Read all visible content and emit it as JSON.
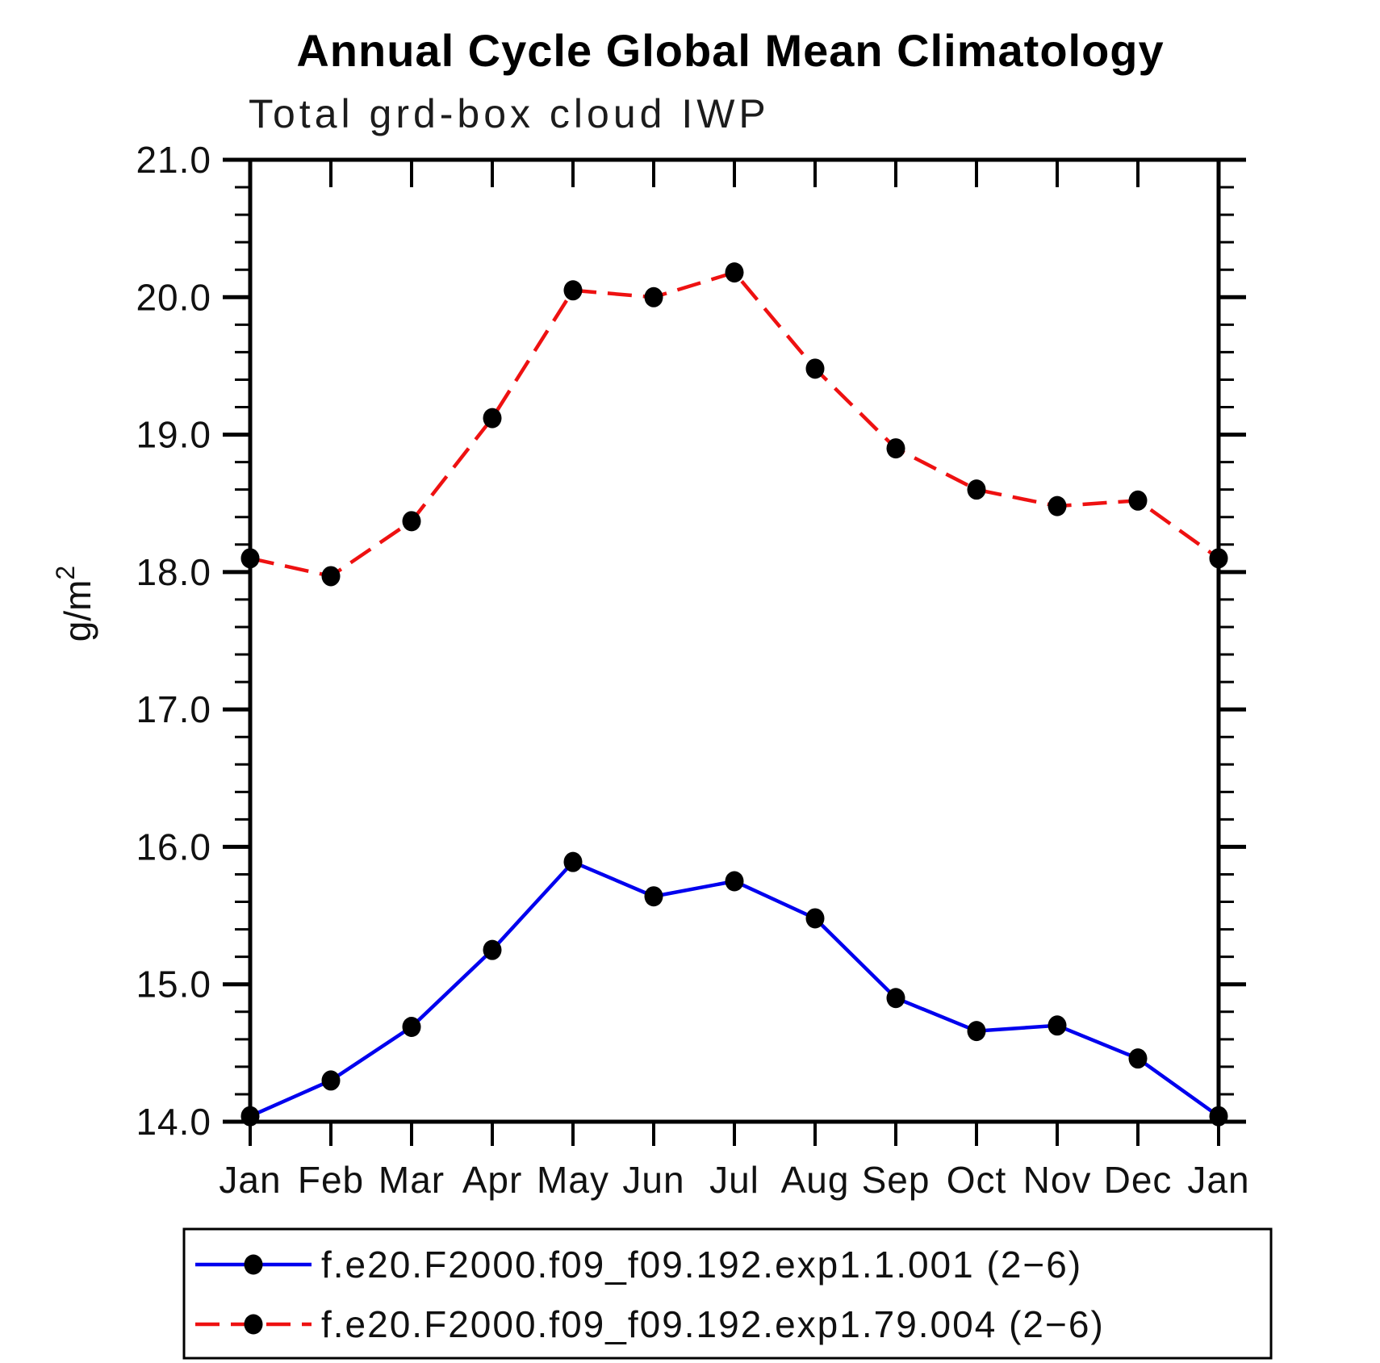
{
  "header": {
    "title": "Annual Cycle Global Mean Climatology",
    "subtitle": "Total grd-box cloud IWP"
  },
  "labels": {
    "ylabel_base": "g/m",
    "ylabel_sup": "2"
  },
  "chart_data": {
    "type": "line",
    "title": "Annual Cycle Global Mean Climatology",
    "subtitle": "Total grd-box cloud IWP",
    "ylabel": "g/m²",
    "xlabel": "",
    "ylim": [
      14.0,
      21.0
    ],
    "ytick_step": 1.0,
    "yminor_step": 0.2,
    "grid": false,
    "legend_position": "bottom",
    "categories": [
      "Jan",
      "Feb",
      "Mar",
      "Apr",
      "May",
      "Jun",
      "Jul",
      "Aug",
      "Sep",
      "Oct",
      "Nov",
      "Dec",
      "Jan"
    ],
    "series": [
      {
        "name": "f.e20.F2000.f09_f09.192.exp1.1.001 (2−6)",
        "color": "#0000ee",
        "line_style": "solid",
        "marker": "filled-circle",
        "marker_color": "#000000",
        "values": [
          14.04,
          14.3,
          14.69,
          15.25,
          15.89,
          15.64,
          15.75,
          15.48,
          14.9,
          14.66,
          14.7,
          14.46,
          14.04
        ]
      },
      {
        "name": "f.e20.F2000.f09_f09.192.exp1.79.004 (2−6)",
        "color": "#ee1111",
        "line_style": "dashed",
        "marker": "filled-circle",
        "marker_color": "#000000",
        "values": [
          18.1,
          17.97,
          18.37,
          19.12,
          20.05,
          20.0,
          20.18,
          19.48,
          18.9,
          18.6,
          18.48,
          18.52,
          18.1
        ]
      }
    ],
    "axis_color": "#000000"
  }
}
